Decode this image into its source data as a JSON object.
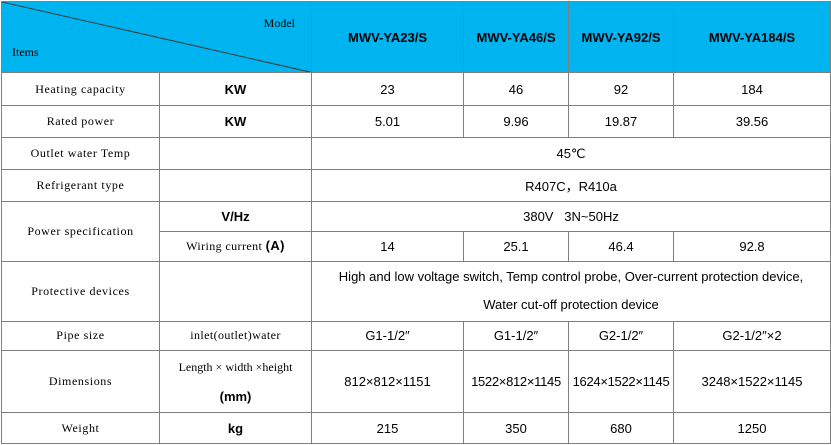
{
  "header": {
    "model_label": "Model",
    "items_label": "Items",
    "models": [
      "MWV-YA23/S",
      "MWV-YA46/S",
      "MWV-YA92/S",
      "MWV-YA184/S"
    ]
  },
  "rows": {
    "heating": {
      "label": "Heating capacity",
      "unit": "KW",
      "values": [
        "23",
        "46",
        "92",
        "184"
      ]
    },
    "rated_power": {
      "label": "Rated power",
      "unit": "KW",
      "values": [
        "5.01",
        "9.96",
        "19.87",
        "39.56"
      ]
    },
    "outlet_temp": {
      "label": "Outlet water Temp",
      "value": "45℃"
    },
    "refrigerant": {
      "label": "Refrigerant type",
      "value": "R407C，R410a"
    },
    "power_spec": {
      "label": "Power specification",
      "voltage_unit": "V/Hz",
      "voltage_value": "380V   3N~50Hz",
      "current_label": "Wiring current ",
      "current_unit": "(A)",
      "current_values": [
        "14",
        "25.1",
        "46.4",
        "92.8"
      ]
    },
    "protective": {
      "label": "Protective devices",
      "line1": "High and low voltage switch, Temp control probe, Over-current protection device,",
      "line2": "Water cut-off protection device"
    },
    "pipe": {
      "label": "Pipe size",
      "unit": "inlet(outlet)water",
      "values": [
        "G1-1/2″",
        "G1-1/2″",
        "G2-1/2″",
        "G2-1/2″×2"
      ]
    },
    "dimensions": {
      "label": "Dimensions",
      "unit_line1": "Length × width ×height",
      "unit_line2": "(mm)",
      "values": [
        "812×812×1151",
        "1522×812×1145",
        "1624×1522×1145",
        "3248×1522×1145"
      ]
    },
    "weight": {
      "label": "Weight",
      "unit": "kg",
      "values": [
        "215",
        "350",
        "680",
        "1250"
      ]
    }
  },
  "colors": {
    "header_bg": "#00b4f0",
    "border": "#7f7f7f"
  }
}
